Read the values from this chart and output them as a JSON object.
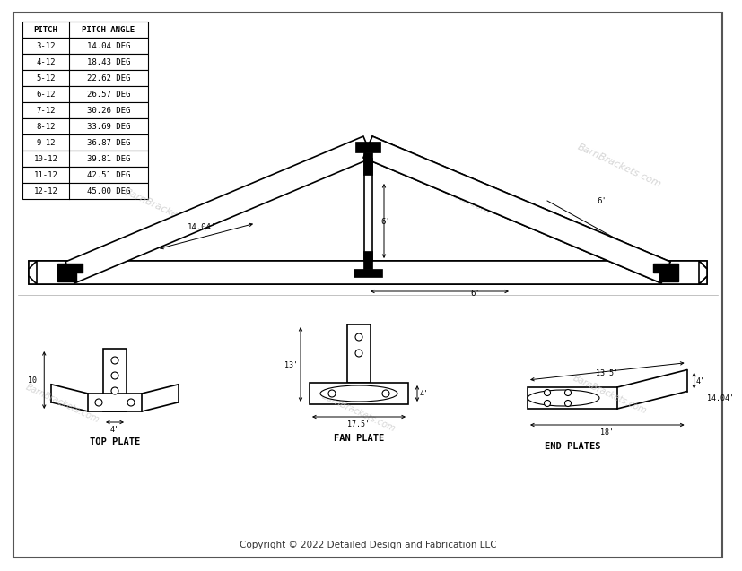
{
  "bg_color": "#ffffff",
  "table": {
    "headers": [
      "PITCH",
      "PITCH ANGLE"
    ],
    "rows": [
      [
        "3-12",
        "14.04 DEG"
      ],
      [
        "4-12",
        "18.43 DEG"
      ],
      [
        "5-12",
        "22.62 DEG"
      ],
      [
        "6-12",
        "26.57 DEG"
      ],
      [
        "7-12",
        "30.26 DEG"
      ],
      [
        "8-12",
        "33.69 DEG"
      ],
      [
        "9-12",
        "36.87 DEG"
      ],
      [
        "10-12",
        "39.81 DEG"
      ],
      [
        "11-12",
        "42.51 DEG"
      ],
      [
        "12-12",
        "45.00 DEG"
      ]
    ]
  },
  "watermark_text": "BarnBrackets.com",
  "copyright": "Copyright © 2022 Detailed Design and Fabrication LLC",
  "truss": {
    "dim_14_04": "14.04'",
    "dim_6_rafter": "6'",
    "dim_6_king": "6'",
    "dim_6_horiz": "6'"
  },
  "plates": {
    "top_label": "TOP PLATE",
    "fan_label": "FAN PLATE",
    "end_label": "END PLATES",
    "top_dim_width": "4'",
    "top_dim_height": "10'",
    "fan_dim_width": "17.5'",
    "fan_dim_height1": "13'",
    "fan_dim_height2": "4'",
    "end_dim_width": "18'",
    "end_dim_height1": "13.5'",
    "end_dim_height2": "4'",
    "end_dim_angle": "14.04'"
  }
}
